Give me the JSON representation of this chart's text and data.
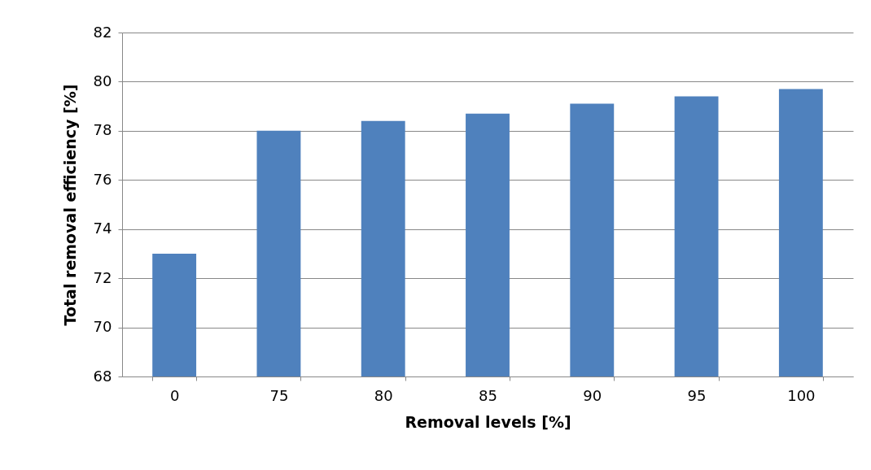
{
  "chart_data": {
    "type": "bar",
    "xlabel": "Removal levels [%]",
    "ylabel": "Total removal efficiency [%]",
    "categories": [
      "0",
      "75",
      "80",
      "85",
      "90",
      "95",
      "100"
    ],
    "values": [
      73.0,
      78.0,
      78.4,
      78.7,
      79.1,
      79.4,
      79.7
    ],
    "color": "#4f81bd",
    "ylim": [
      68,
      82
    ],
    "yticks": [
      68,
      70,
      72,
      74,
      76,
      78,
      80,
      82
    ],
    "grid": "y"
  }
}
